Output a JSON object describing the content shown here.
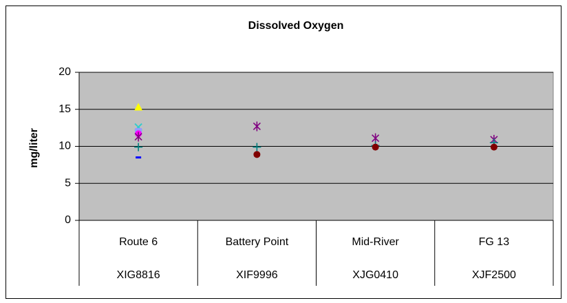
{
  "chart_data": {
    "type": "scatter",
    "title": "Dissolved Oxygen",
    "y_label": "mg/liter",
    "categories": [
      "Route 6",
      "Battery Point",
      "Mid-River",
      "FG 13"
    ],
    "subcategories": [
      "XIG8816",
      "XIF9996",
      "XJG0410",
      "XJF2500"
    ],
    "ylim": [
      0,
      20
    ],
    "yticks": [
      0,
      5,
      10,
      15,
      20
    ],
    "grid": true,
    "plot_background": "#c0c0c0",
    "series": [
      {
        "color": "#ffff00",
        "marker": "triangle",
        "values": [
          15.3,
          null,
          null,
          null
        ]
      },
      {
        "color": "#33cccc",
        "marker": "x",
        "values": [
          12.6,
          null,
          null,
          null
        ]
      },
      {
        "color": "#9999ff",
        "marker": "square",
        "values": [
          12.0,
          null,
          null,
          null
        ]
      },
      {
        "color": "#ff00ff",
        "marker": "circle",
        "values": [
          11.7,
          null,
          null,
          null
        ]
      },
      {
        "color": "#800080",
        "marker": "star",
        "values": [
          11.3,
          12.7,
          11.1,
          10.9
        ]
      },
      {
        "color": "#008080",
        "marker": "plus",
        "values": [
          9.9,
          9.9,
          10.1,
          10.5
        ]
      },
      {
        "color": "#800000",
        "marker": "circle",
        "values": [
          null,
          8.9,
          9.9,
          9.9
        ]
      },
      {
        "color": "#0000ff",
        "marker": "dash",
        "values": [
          8.5,
          null,
          null,
          null
        ]
      }
    ]
  }
}
